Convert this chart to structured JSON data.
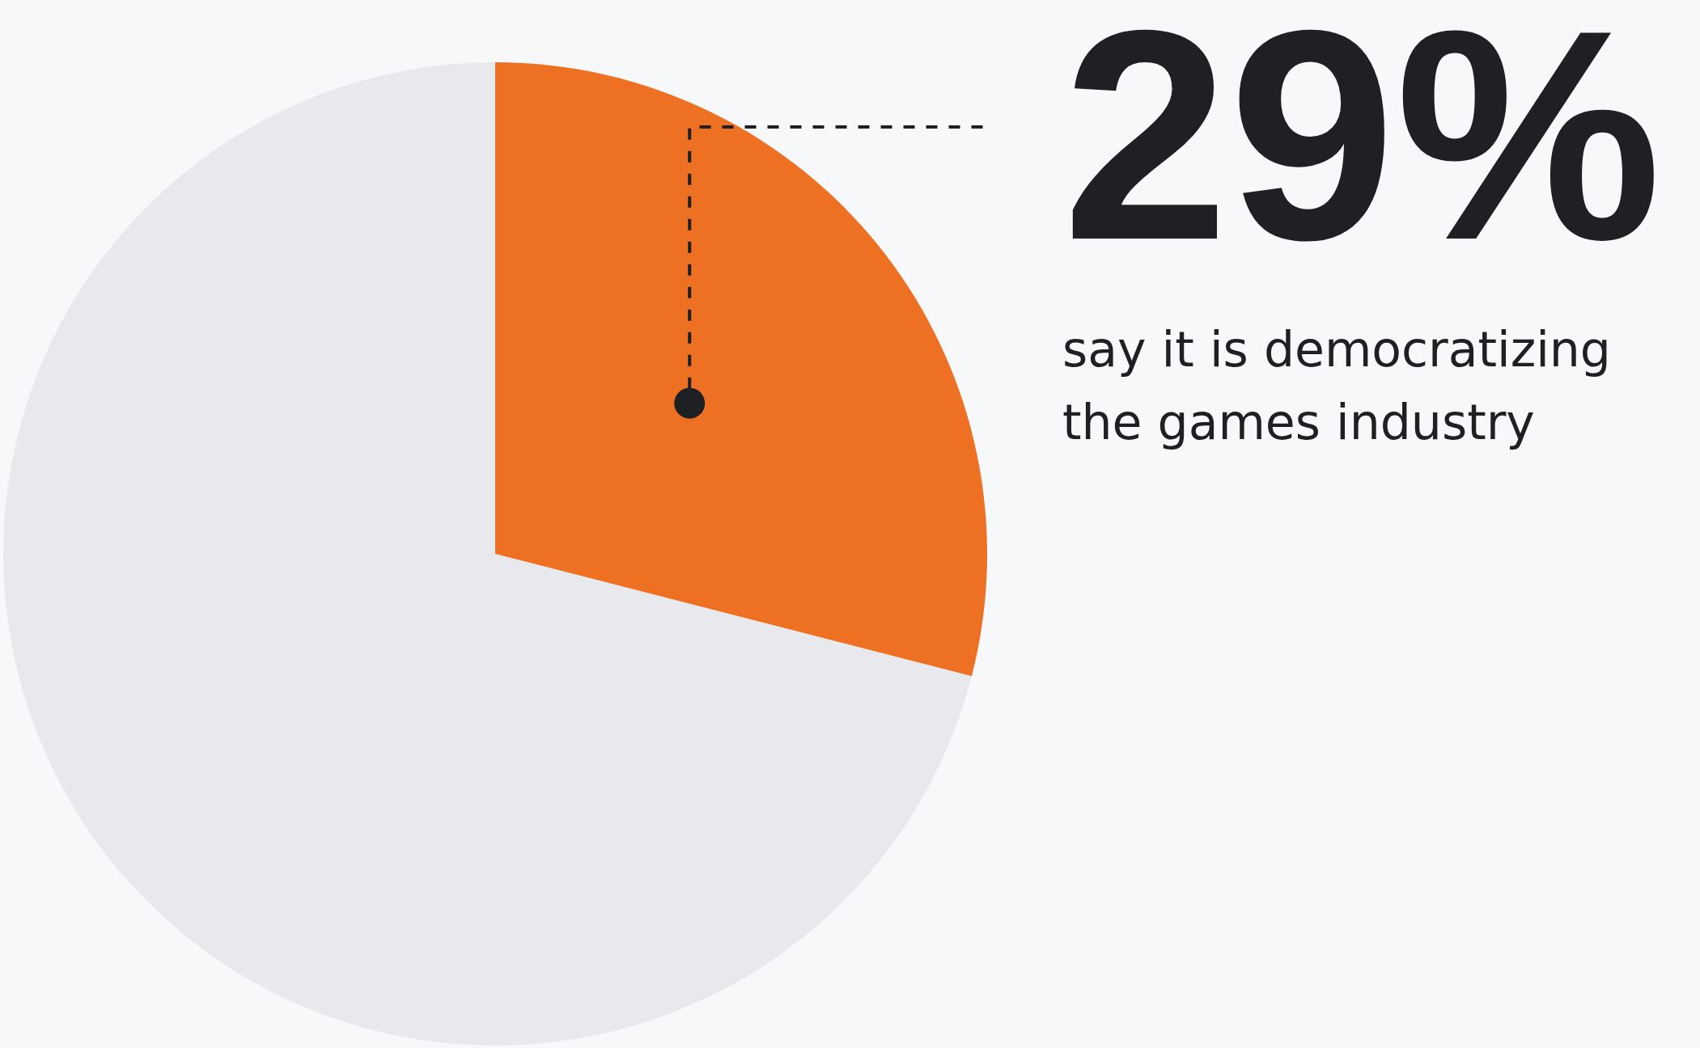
{
  "chart_data": {
    "type": "pie",
    "categories": [
      "say it is democratizing the games industry",
      null
    ],
    "values": [
      29,
      71
    ],
    "colors": [
      "#ee7022",
      "#e8e9ed"
    ],
    "value_labels": [
      "29%",
      null
    ]
  }
}
